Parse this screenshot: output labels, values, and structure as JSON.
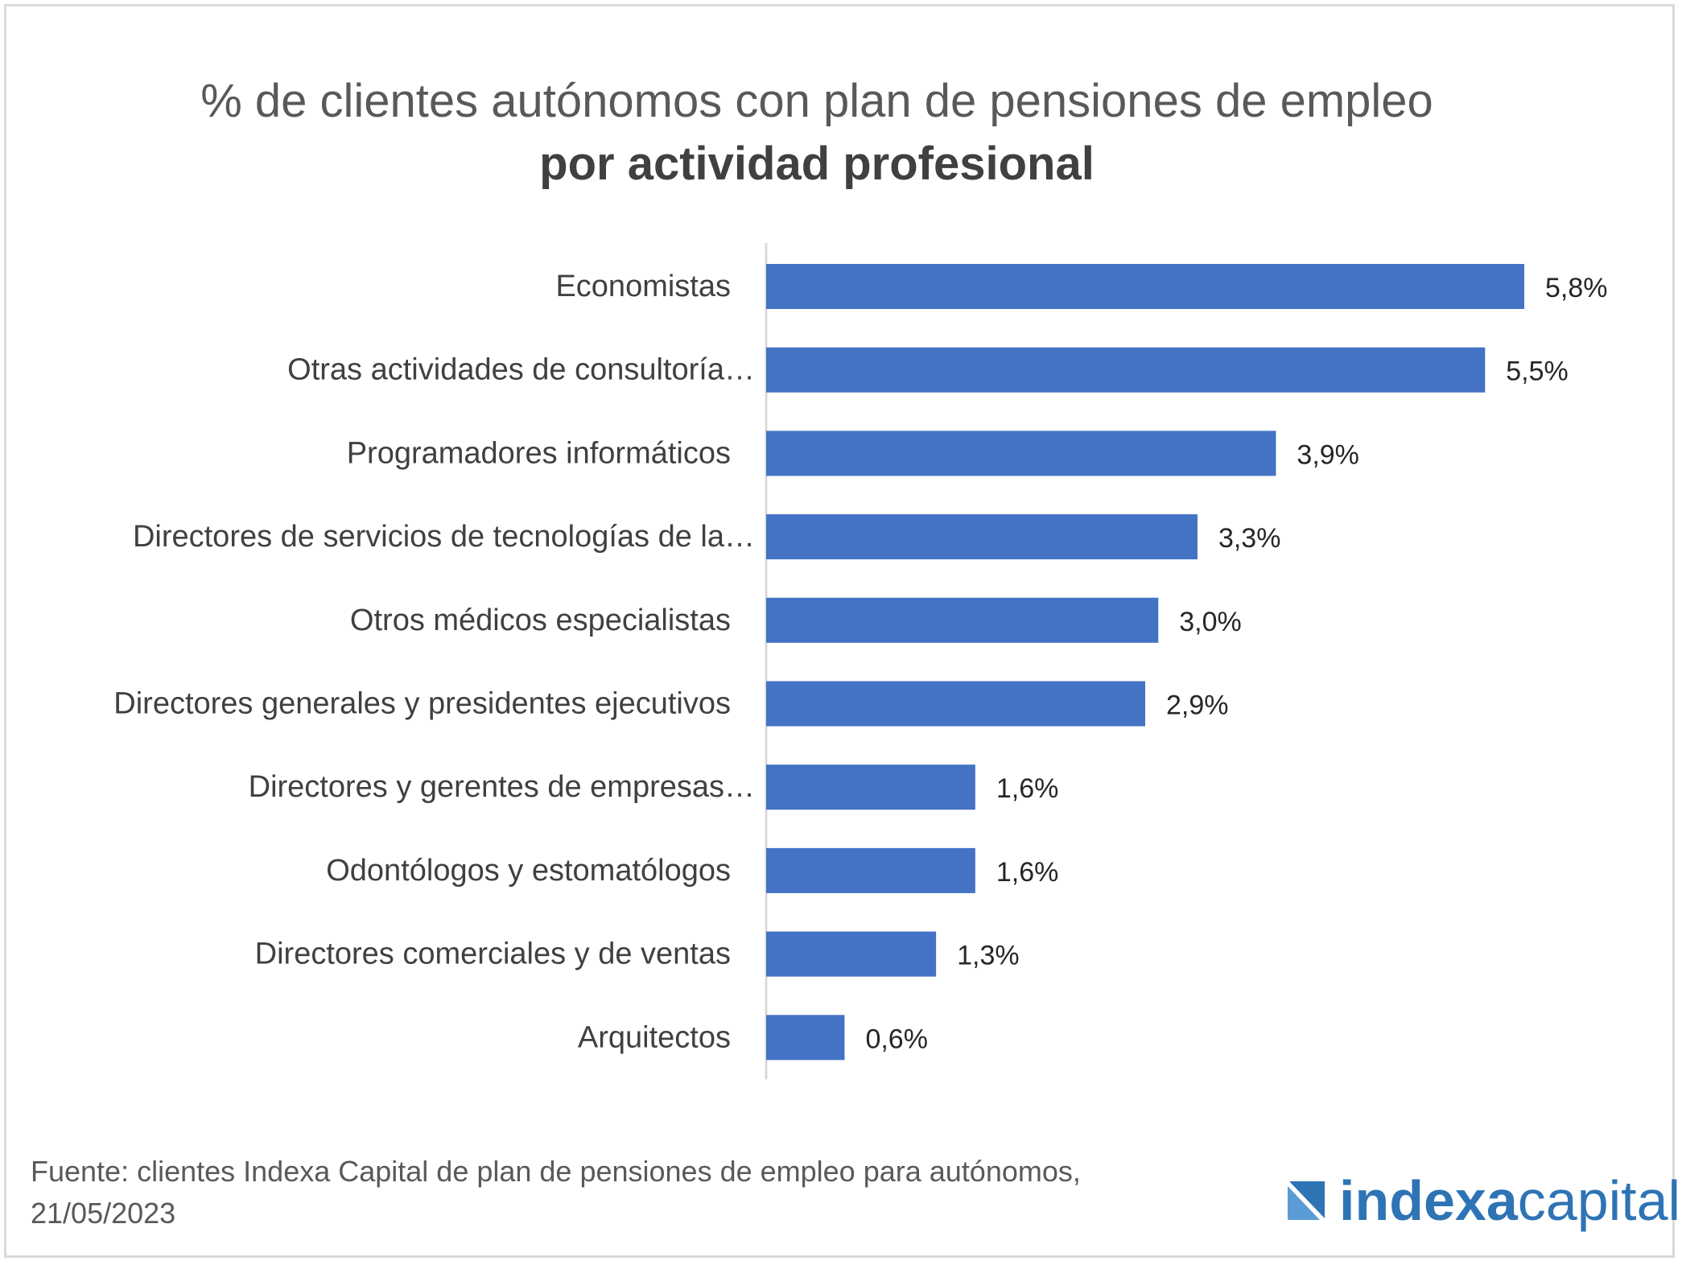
{
  "chart_data": {
    "type": "bar",
    "orientation": "horizontal",
    "title": "% de clientes autónomos con plan de pensiones de empleo",
    "subtitle": "por actividad profesional",
    "categories": [
      "Economistas",
      "Otras actividades de consultoría…",
      "Programadores informáticos",
      "Directores de servicios de tecnologías de la…",
      "Otros médicos especialistas",
      "Directores generales y presidentes ejecutivos",
      "Directores y gerentes de empresas…",
      "Odontólogos y estomatólogos",
      "Directores comerciales y de ventas",
      "Arquitectos"
    ],
    "values": [
      5.8,
      5.5,
      3.9,
      3.3,
      3.0,
      2.9,
      1.6,
      1.6,
      1.3,
      0.6
    ],
    "value_labels": [
      "5,8%",
      "5,5%",
      "3,9%",
      "3,3%",
      "3,0%",
      "2,9%",
      "1,6%",
      "1,6%",
      "1,3%",
      "0,6%"
    ],
    "xlim": [
      0,
      6
    ],
    "grid": false,
    "bar_color": "#4472c4"
  },
  "source": {
    "line1": "Fuente: clientes Indexa Capital  de plan de pensiones de empleo para autónomos,",
    "line2": "21/05/2023"
  },
  "logo": {
    "word1": "indexa",
    "word2": "capital",
    "mark_icon": "indexa-logo-mark-icon"
  }
}
